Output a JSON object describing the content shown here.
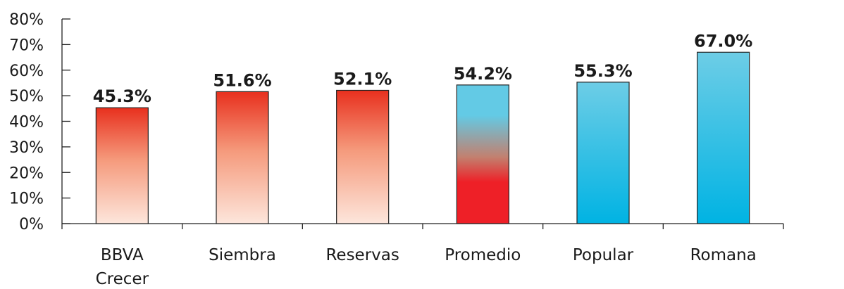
{
  "chart_data": {
    "type": "bar",
    "categories": [
      [
        "BBVA",
        "Crecer"
      ],
      [
        "Siembra"
      ],
      [
        "Reservas"
      ],
      [
        "Promedio"
      ],
      [
        "Popular"
      ],
      [
        "Romana"
      ]
    ],
    "values": [
      45.3,
      51.6,
      52.1,
      54.2,
      55.3,
      67.0
    ],
    "data_labels": [
      "45.3%",
      "51.6%",
      "52.1%",
      "54.2%",
      "55.3%",
      "67.0%"
    ],
    "bar_styles": [
      "red-gradient",
      "red-gradient",
      "red-gradient",
      "average-gradient",
      "blue-gradient",
      "blue-gradient"
    ],
    "yticks": [
      0,
      10,
      20,
      30,
      40,
      50,
      60,
      70,
      80
    ],
    "ytick_labels": [
      "0%",
      "10%",
      "20%",
      "30%",
      "40%",
      "50%",
      "60%",
      "70%",
      "80%"
    ],
    "ylim": [
      0,
      80
    ],
    "title": "",
    "xlabel": "",
    "ylabel": "",
    "grid": false,
    "legend": "none",
    "colors": {
      "red_dark": "#e8301e",
      "red_light": "#fde6dc",
      "blue_light": "#6dcde6",
      "blue_dark": "#00b3e3",
      "avg_red": "#ee2027",
      "avg_blue": "#63cae5"
    }
  }
}
